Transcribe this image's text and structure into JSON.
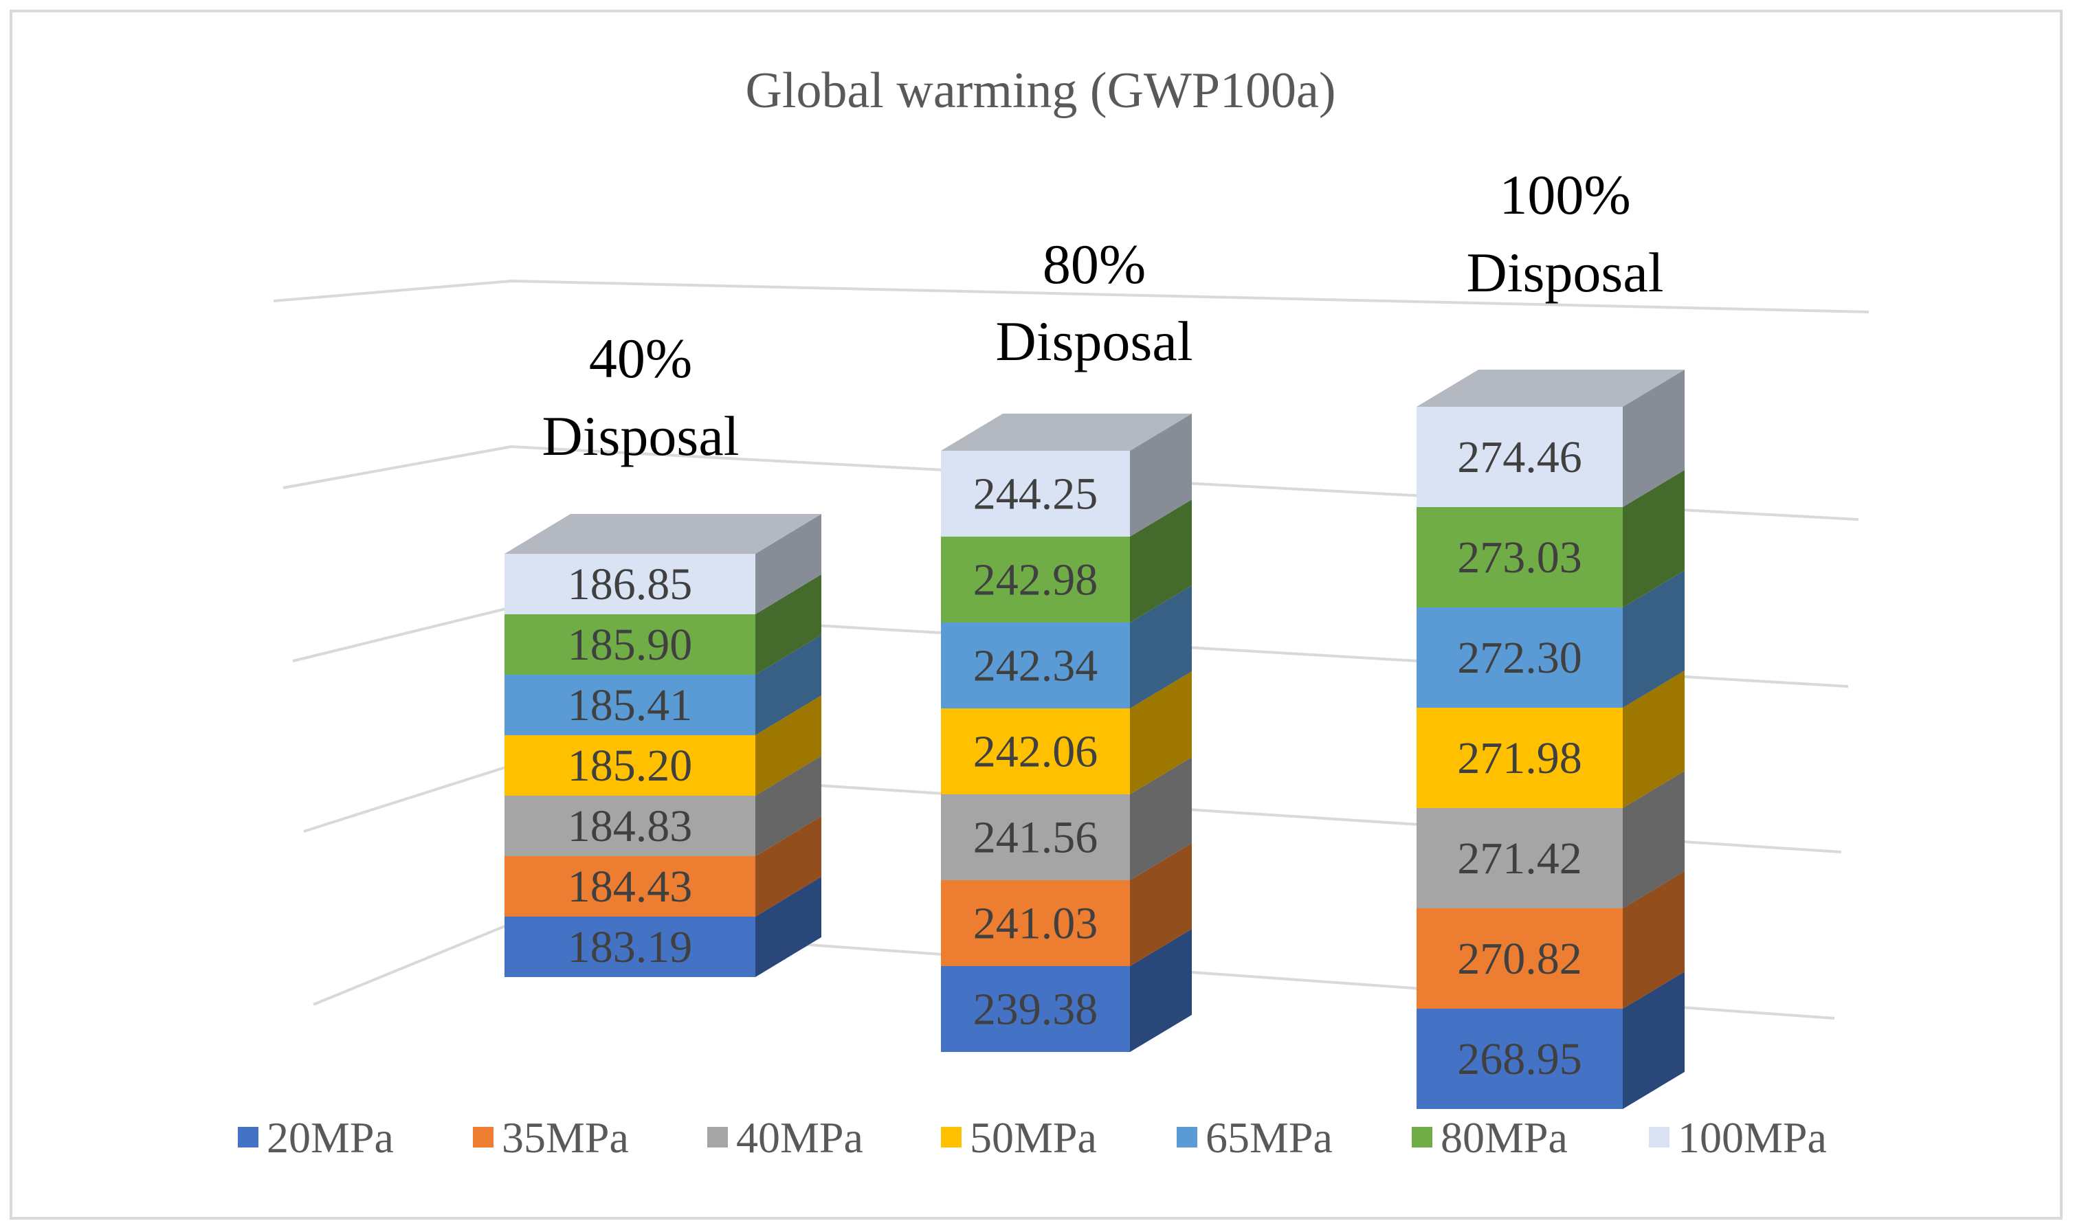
{
  "chart_data": {
    "type": "bar",
    "stacked": true,
    "title": "Global warming (GWP100a)",
    "categories": [
      {
        "line1": "40%",
        "line2": "Disposal"
      },
      {
        "line1": "80%",
        "line2": "Disposal"
      },
      {
        "line1": "100%",
        "line2": "Disposal"
      }
    ],
    "series": [
      {
        "name": "20MPa",
        "color": "#4472c4",
        "values": [
          183.19,
          239.38,
          268.95
        ],
        "labels": [
          "183.19",
          "239.38",
          "268.95"
        ]
      },
      {
        "name": "35MPa",
        "color": "#ed7d31",
        "values": [
          184.43,
          241.03,
          270.82
        ],
        "labels": [
          "184.43",
          "241.03",
          "270.82"
        ]
      },
      {
        "name": "40MPa",
        "color": "#a5a5a5",
        "values": [
          184.83,
          241.56,
          271.42
        ],
        "labels": [
          "184.83",
          "241.56",
          "271.42"
        ]
      },
      {
        "name": "50MPa",
        "color": "#ffc000",
        "values": [
          185.2,
          242.06,
          271.98
        ],
        "labels": [
          "185.20",
          "242.06",
          "271.98"
        ]
      },
      {
        "name": "65MPa",
        "color": "#5b9bd5",
        "values": [
          185.41,
          242.34,
          272.3
        ],
        "labels": [
          "185.41",
          "242.34",
          "272.30"
        ]
      },
      {
        "name": "80MPa",
        "color": "#70ad47",
        "values": [
          185.9,
          242.98,
          273.03
        ],
        "labels": [
          "185.90",
          "242.98",
          "273.03"
        ]
      },
      {
        "name": "100MPa",
        "color": "#dae3f3",
        "values": [
          186.85,
          244.25,
          274.46
        ],
        "labels": [
          "186.85",
          "244.25",
          "274.46"
        ]
      }
    ],
    "legend": "bottom",
    "grid": true,
    "projection": "3d"
  }
}
